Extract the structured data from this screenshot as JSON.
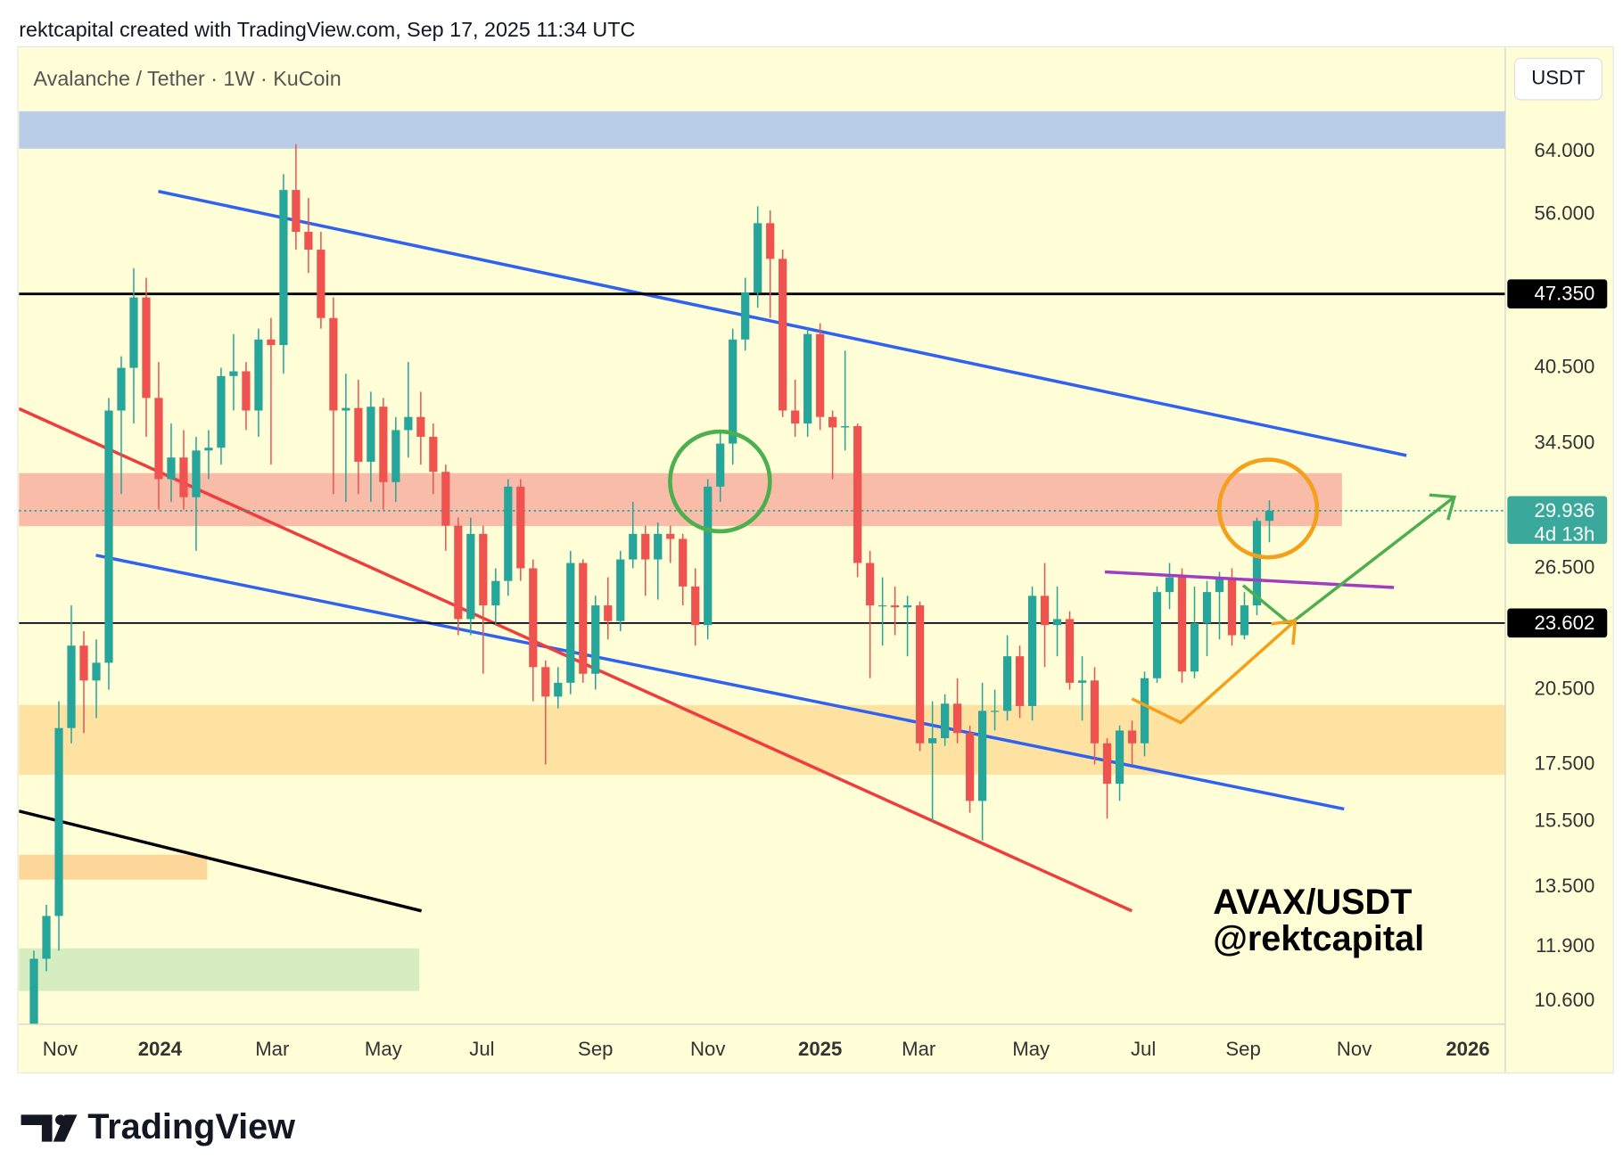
{
  "header": {
    "credit": "rektcapital created with TradingView.com, Sep 17, 2025 11:34 UTC"
  },
  "chart_data": {
    "type": "candlestick",
    "title": "Avalanche / Tether · 1W · KuCoin",
    "currency": "USDT",
    "open": [
      9.8,
      11.6,
      12.7,
      18.9,
      22.5,
      20.9,
      21.7,
      37,
      40.5,
      47,
      38,
      32,
      33.5,
      30.8,
      34,
      34.2,
      39.8,
      40.2,
      37,
      43,
      42.5,
      59,
      54,
      52,
      45,
      37,
      37.2,
      33.2,
      37.3,
      31.8,
      35.5,
      36.5,
      35,
      32.5,
      29,
      23.8,
      28.5,
      24.5,
      25.8,
      31.5,
      26.5,
      21.5,
      20.2,
      20.8,
      26.8,
      21.2,
      24.5,
      23.7,
      27,
      28.5,
      27,
      28.5,
      28.2,
      25.5,
      23.5,
      31.5,
      34.5,
      43,
      47.5,
      55,
      51,
      37,
      36,
      43.5,
      36.5,
      35.7,
      35.8,
      26.8,
      24.5,
      24.5,
      24.4,
      24.5,
      18.3,
      18.5,
      19.9,
      18.7,
      16.2,
      19.6,
      19.6,
      22,
      19.8,
      25,
      23.5,
      23.8,
      20.8,
      20.9,
      18.3,
      16.8,
      18.8,
      18.3,
      21,
      25.2,
      26,
      21.3,
      23.6,
      25.2,
      26,
      23,
      24.5,
      29.3
    ],
    "high": [
      11.8,
      13,
      20,
      24.5,
      23.2,
      22.8,
      38,
      41.5,
      50,
      49,
      41,
      36,
      35.5,
      35,
      35.5,
      40.5,
      43.5,
      41,
      44,
      45,
      61,
      65,
      58,
      54,
      47,
      40,
      39.5,
      38.5,
      38,
      36.5,
      41,
      38.5,
      36,
      33,
      29.5,
      29.5,
      29,
      26.5,
      32,
      32,
      27,
      21.8,
      21.5,
      27.5,
      27,
      25,
      26,
      27.5,
      30.5,
      29,
      29.2,
      29,
      28.5,
      26.5,
      32,
      35.5,
      44,
      49,
      57,
      56.5,
      52,
      39.5,
      44,
      44.5,
      37,
      42,
      36,
      27.5,
      26,
      25.5,
      25,
      24.7,
      20,
      20.3,
      21,
      19,
      20.8,
      20.5,
      23,
      22.5,
      25.5,
      26.8,
      25.5,
      24.2,
      22,
      21.5,
      18.5,
      19,
      19.2,
      21.3,
      25.5,
      26.8,
      26.5,
      25.5,
      25.8,
      26.3,
      26.5,
      25.2,
      29.5,
      30.6
    ],
    "low": [
      9.5,
      11.3,
      11.8,
      18.3,
      18.7,
      19.3,
      20.5,
      31,
      36,
      35,
      30,
      30.5,
      30,
      27.5,
      32,
      33,
      37,
      35.5,
      35,
      33,
      40,
      52,
      49.5,
      44,
      31,
      30.5,
      31,
      30.5,
      30,
      30.5,
      33.5,
      33,
      31,
      27.5,
      23,
      23,
      21.2,
      23.5,
      25,
      25.8,
      20,
      17.5,
      19.7,
      20.3,
      20.8,
      20.5,
      22.8,
      23.2,
      26.5,
      25,
      24.8,
      26.8,
      24.5,
      22.5,
      22.8,
      30.5,
      33,
      42,
      46,
      45,
      36.5,
      35,
      35,
      35.5,
      32,
      34,
      26,
      21,
      22.5,
      23,
      22,
      18,
      15.5,
      18.2,
      18.3,
      15.8,
      14.9,
      18.8,
      19.2,
      19.3,
      19.2,
      21.5,
      22,
      20.5,
      19.2,
      17.5,
      15.6,
      16.2,
      17.5,
      17.8,
      20.8,
      24.3,
      20.8,
      21,
      22,
      22.8,
      22.5,
      22.8,
      24,
      28
    ],
    "close": [
      11.6,
      12.7,
      18.9,
      22.5,
      20.9,
      21.7,
      37,
      40.5,
      47,
      38,
      32,
      33.5,
      30.8,
      34,
      34.2,
      39.8,
      40.2,
      37,
      43,
      42.5,
      59,
      54,
      52,
      45,
      37,
      37.2,
      33.2,
      37.3,
      31.8,
      35.5,
      36.5,
      35,
      32.5,
      29,
      23.8,
      28.5,
      24.5,
      25.8,
      31.5,
      26.5,
      21.5,
      20.2,
      20.8,
      26.8,
      21.2,
      24.5,
      23.7,
      27,
      28.5,
      27,
      28.5,
      28.2,
      25.5,
      23.5,
      31.5,
      34.5,
      43,
      47.5,
      55,
      51,
      37,
      36,
      43.5,
      36.5,
      35.7,
      35.8,
      26.8,
      24.5,
      24.5,
      24.4,
      24.5,
      18.3,
      18.5,
      19.9,
      18.7,
      16.2,
      19.6,
      19.6,
      22,
      19.8,
      25,
      23.5,
      23.8,
      20.8,
      20.9,
      18.3,
      16.8,
      18.8,
      18.3,
      21,
      25.2,
      26,
      21.3,
      23.6,
      25.2,
      26,
      23,
      24.5,
      29.3,
      29.936
    ],
    "up_color": "#26a69a",
    "down_color": "#ef5350",
    "xlim": [
      -1.2,
      117.9
    ],
    "xticks": [
      {
        "value": 2.1,
        "label": "Nov"
      },
      {
        "value": 10.1,
        "label": "2024"
      },
      {
        "value": 19.1,
        "label": "Mar"
      },
      {
        "value": 28,
        "label": "May"
      },
      {
        "value": 35.9,
        "label": "Jul"
      },
      {
        "value": 45,
        "label": "Sep"
      },
      {
        "value": 54,
        "label": "Nov"
      },
      {
        "value": 63,
        "label": "2025"
      },
      {
        "value": 70.9,
        "label": "Mar"
      },
      {
        "value": 79.9,
        "label": "May"
      },
      {
        "value": 88.9,
        "label": "Jul"
      },
      {
        "value": 96.9,
        "label": "Sep"
      },
      {
        "value": 105.8,
        "label": "Nov"
      },
      {
        "value": 114.9,
        "label": "2026"
      }
    ],
    "ylim": [
      10.1,
      79.7
    ],
    "log_scale": true,
    "yticks": [
      {
        "value": 64,
        "label": "64.000"
      },
      {
        "value": 56,
        "label": "56.000"
      },
      {
        "value": 40.5,
        "label": "40.500"
      },
      {
        "value": 34.5,
        "label": "34.500"
      },
      {
        "value": 26.5,
        "label": "26.500"
      },
      {
        "value": 20.5,
        "label": "20.500"
      },
      {
        "value": 17.5,
        "label": "17.500"
      },
      {
        "value": 15.5,
        "label": "15.500"
      },
      {
        "value": 13.5,
        "label": "13.500"
      },
      {
        "value": 11.9,
        "label": "11.900"
      },
      {
        "value": 10.6,
        "label": "10.600"
      }
    ],
    "levels": [
      {
        "value": 47.35,
        "label": "47.350"
      },
      {
        "value": 23.602,
        "label": "23.602"
      }
    ],
    "last_price": {
      "value": 29.936,
      "label": "29.936",
      "countdown": "4d 13h"
    },
    "annotations": [
      "AVAX/USDT",
      "@rektcapital"
    ]
  },
  "footer": {
    "brand": "TradingView"
  }
}
